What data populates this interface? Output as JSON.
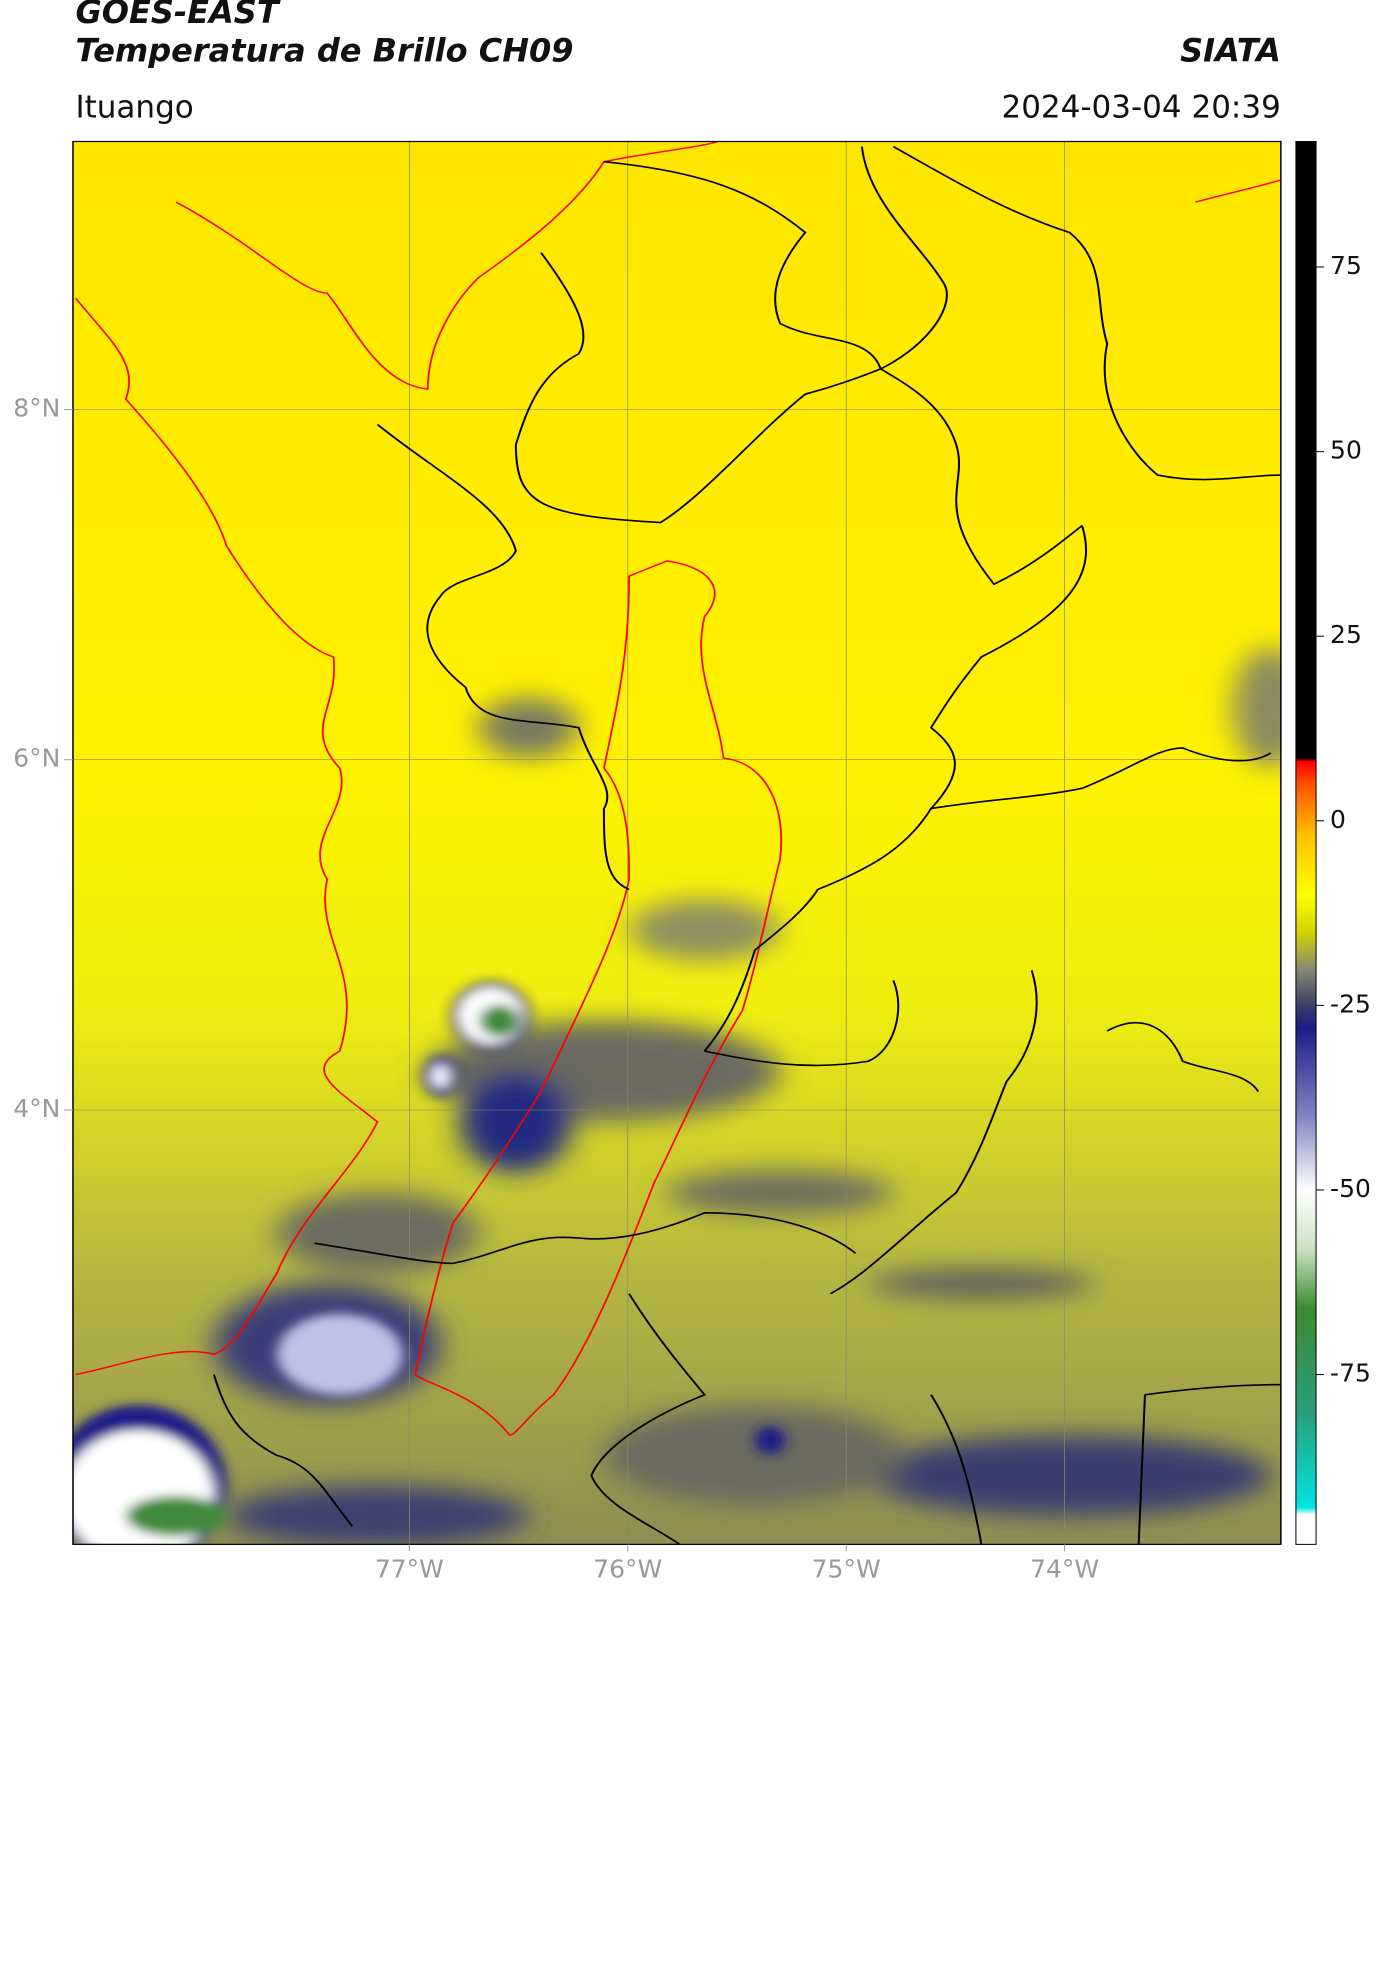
{
  "header": {
    "title": "GOES-EAST",
    "subtitle": "Temperatura de Brillo CH09",
    "source": "SIATA",
    "location": "Ituango",
    "datetime": "2024-03-04 20:39"
  },
  "map": {
    "lonlim": [
      -78.54,
      -73.01
    ],
    "latlim": [
      1.52,
      9.53
    ],
    "lon_ticks": [
      {
        "value": -77,
        "label": "77°W"
      },
      {
        "value": -76,
        "label": "76°W"
      },
      {
        "value": -75,
        "label": "75°W"
      },
      {
        "value": -74,
        "label": "74°W"
      }
    ],
    "lat_ticks": [
      {
        "value": 8,
        "label": "8°N"
      },
      {
        "value": 6,
        "label": "6°N"
      },
      {
        "value": 4,
        "label": "4°N"
      }
    ]
  },
  "colorbar": {
    "lim": [
      -98,
      92
    ],
    "ticks": [
      75,
      50,
      25,
      0,
      -25,
      -50,
      -75
    ],
    "colorscale": [
      [
        -98,
        "#ffffff"
      ],
      [
        -94,
        "#ffffff"
      ],
      [
        -93,
        "#00e5e0"
      ],
      [
        -80,
        "#2a9d7a"
      ],
      [
        -66,
        "#3c8a30"
      ],
      [
        -58,
        "#c9e3c0"
      ],
      [
        -50,
        "#ffffff"
      ],
      [
        -40,
        "#7f84c2"
      ],
      [
        -28,
        "#1a1d86"
      ],
      [
        -25,
        "#3a3f6a"
      ],
      [
        -20,
        "#8a8a70"
      ],
      [
        -15,
        "#d4d400"
      ],
      [
        -10,
        "#ffff00"
      ],
      [
        -2,
        "#ffc000"
      ],
      [
        5,
        "#ff5000"
      ],
      [
        8,
        "#ff0000"
      ],
      [
        8.5,
        "#000000"
      ],
      [
        92,
        "#000000"
      ]
    ]
  }
}
